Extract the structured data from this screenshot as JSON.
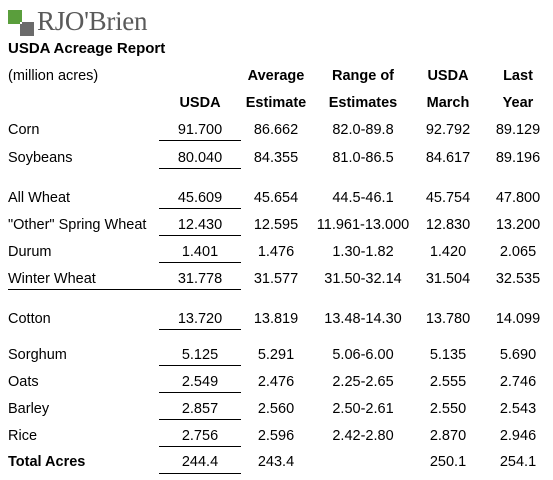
{
  "brand": {
    "name": "RJO'Brien"
  },
  "report_title": "USDA Acreage Report",
  "header": {
    "units": "(million acres)",
    "col_usda": "USDA",
    "col_avg_1": "Average",
    "col_avg_2": "Estimate",
    "col_range_1": "Range of",
    "col_range_2": "Estimates",
    "col_march_1": "USDA",
    "col_march_2": "March",
    "col_last_1": "Last",
    "col_last_2": "Year"
  },
  "rows": [
    {
      "label": "Corn",
      "usda": "91.700",
      "avg": "86.662",
      "range": "82.0-89.8",
      "march": "92.792",
      "last": "89.129"
    },
    {
      "label": "Soybeans",
      "usda": "80.040",
      "avg": "84.355",
      "range": "81.0-86.5",
      "march": "84.617",
      "last": "89.196"
    },
    {
      "label": "All Wheat",
      "usda": "45.609",
      "avg": "45.654",
      "range": "44.5-46.1",
      "march": "45.754",
      "last": "47.800"
    },
    {
      "label": "\"Other\" Spring Wheat",
      "usda": "12.430",
      "avg": "12.595",
      "range": "11.961-13.000",
      "march": "12.830",
      "last": "13.200"
    },
    {
      "label": "Durum",
      "usda": "1.401",
      "avg": "1.476",
      "range": "1.30-1.82",
      "march": "1.420",
      "last": "2.065"
    },
    {
      "label": "Winter Wheat",
      "usda": "31.778",
      "avg": "31.577",
      "range": "31.50-32.14",
      "march": "31.504",
      "last": "32.535"
    },
    {
      "label": "Cotton",
      "usda": "13.720",
      "avg": "13.819",
      "range": "13.48-14.30",
      "march": "13.780",
      "last": "14.099"
    },
    {
      "label": "Sorghum",
      "usda": "5.125",
      "avg": "5.291",
      "range": "5.06-6.00",
      "march": "5.135",
      "last": "5.690"
    },
    {
      "label": "Oats",
      "usda": "2.549",
      "avg": "2.476",
      "range": "2.25-2.65",
      "march": "2.555",
      "last": "2.746"
    },
    {
      "label": "Barley",
      "usda": "2.857",
      "avg": "2.560",
      "range": "2.50-2.61",
      "march": "2.550",
      "last": "2.543"
    },
    {
      "label": "Rice",
      "usda": "2.756",
      "avg": "2.596",
      "range": "2.42-2.80",
      "march": "2.870",
      "last": "2.946"
    }
  ],
  "total": {
    "label": "Total Acres",
    "usda": "244.4",
    "avg": "243.4",
    "range": "",
    "march": "250.1",
    "last": "254.1"
  },
  "colors": {
    "logo_green": "#5a9e3c",
    "logo_gray": "#6b6b6b"
  }
}
